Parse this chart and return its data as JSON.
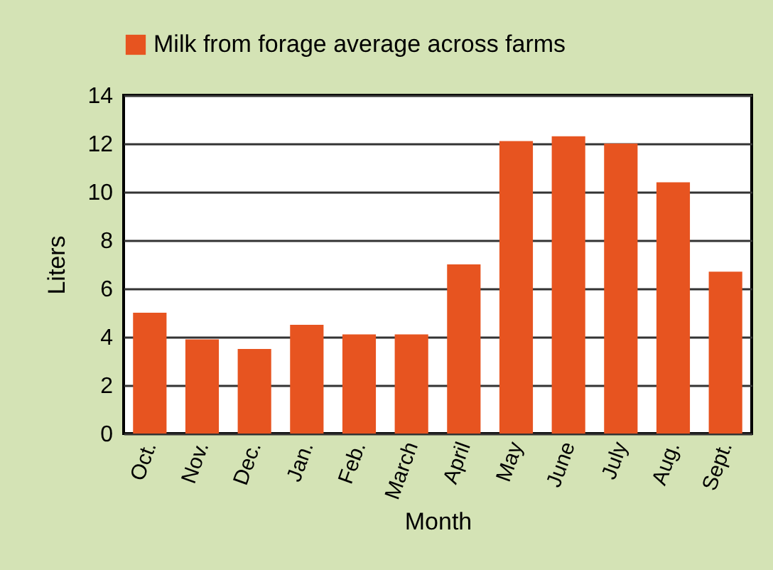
{
  "chart_data": {
    "type": "bar",
    "xlabel": "Month",
    "ylabel": "Liters",
    "categories": [
      "Oct.",
      "Nov.",
      "Dec.",
      "Jan.",
      "Feb.",
      "March",
      "April",
      "May",
      "June",
      "July",
      "Aug.",
      "Sept."
    ],
    "series": [
      {
        "name": "Milk from forage average across farms",
        "color": "#e75420",
        "values": [
          5.0,
          3.9,
          3.5,
          4.5,
          4.1,
          4.1,
          7.0,
          12.1,
          12.3,
          12.0,
          10.4,
          6.7
        ]
      }
    ],
    "ylim": [
      0,
      14
    ],
    "yticks": [
      0,
      2,
      4,
      6,
      8,
      10,
      12,
      14
    ],
    "grid": "y",
    "legend": "top left"
  }
}
